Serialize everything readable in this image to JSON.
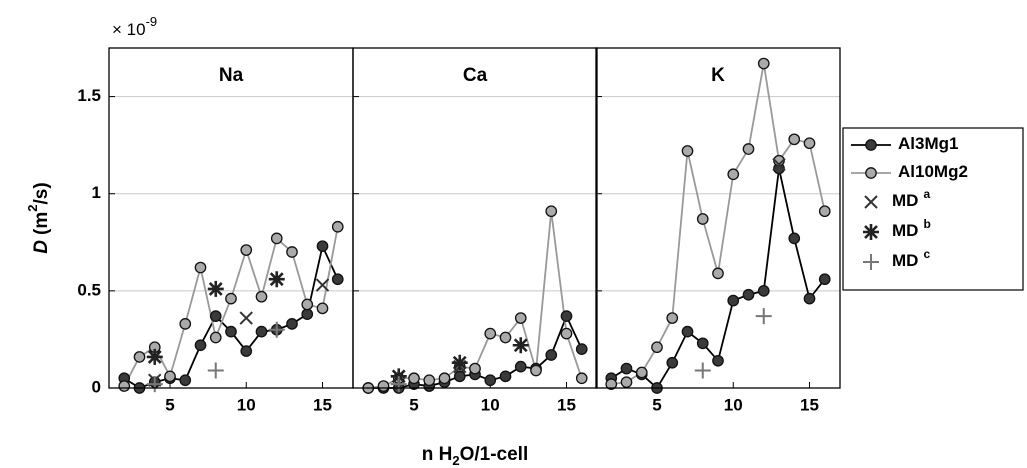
{
  "figure": {
    "multiplier": "× 10",
    "multiplier_sup": "-9",
    "y_label_symbol": "D",
    "y_label_unit": "(m",
    "y_label_unit_sup": "2",
    "y_label_unit_end": "/s)",
    "x_label_start": "n H",
    "x_label_sub": "2",
    "x_label_end": "O/1-cell"
  },
  "chart_data": [
    {
      "type": "line",
      "title": "Na",
      "x": [
        2,
        3,
        4,
        5,
        6,
        7,
        8,
        9,
        10,
        11,
        12,
        13,
        14,
        15,
        16
      ],
      "xlim": [
        1,
        17
      ],
      "xticks": [
        5,
        10,
        15
      ],
      "ylim": [
        0,
        1.75
      ],
      "yticks": [
        0,
        0.5,
        1,
        1.5
      ],
      "grid": true,
      "series": [
        {
          "name": "Al3Mg1",
          "color": "#000000",
          "fill": "#3a3a3a",
          "marker": "circle",
          "values": [
            0.05,
            0.0,
            0.03,
            0.05,
            0.04,
            0.22,
            0.37,
            0.29,
            0.19,
            0.29,
            0.3,
            0.33,
            0.38,
            0.73,
            0.56
          ]
        },
        {
          "name": "Al10Mg2",
          "color": "#999999",
          "fill": "#aaaaaa",
          "marker": "circle",
          "values": [
            0.01,
            0.16,
            0.21,
            0.06,
            0.33,
            0.62,
            0.26,
            0.46,
            0.71,
            0.47,
            0.77,
            0.7,
            0.43,
            0.41,
            0.83
          ]
        },
        {
          "name": "MD",
          "name_sup": "a",
          "color": "#333333",
          "marker": "x",
          "values": [
            null,
            null,
            0.04,
            null,
            null,
            null,
            null,
            null,
            0.36,
            null,
            null,
            null,
            null,
            0.53,
            null
          ]
        },
        {
          "name": "MD",
          "name_sup": "b",
          "color": "#222222",
          "marker": "asterisk",
          "values": [
            null,
            null,
            0.16,
            null,
            null,
            null,
            0.51,
            null,
            null,
            null,
            0.56,
            null,
            null,
            null,
            null
          ]
        },
        {
          "name": "MD",
          "name_sup": "c",
          "color": "#777777",
          "marker": "plus",
          "values": [
            null,
            null,
            0.02,
            null,
            null,
            null,
            0.09,
            null,
            null,
            null,
            0.3,
            null,
            null,
            null,
            null
          ]
        }
      ]
    },
    {
      "type": "line",
      "title": "Ca",
      "x": [
        2,
        3,
        4,
        5,
        6,
        7,
        8,
        9,
        10,
        11,
        12,
        13,
        14,
        15,
        16
      ],
      "xlim": [
        1,
        17
      ],
      "xticks": [
        5,
        10,
        15
      ],
      "ylim": [
        0,
        1.75
      ],
      "yticks": [
        0,
        0.5,
        1,
        1.5
      ],
      "grid": true,
      "series": [
        {
          "color": "#000000",
          "fill": "#3a3a3a",
          "marker": "circle",
          "values": [
            0.0,
            0.0,
            0.0,
            0.02,
            0.01,
            0.03,
            0.06,
            0.07,
            0.04,
            0.06,
            0.11,
            0.1,
            0.17,
            0.37,
            0.2
          ]
        },
        {
          "color": "#999999",
          "fill": "#aaaaaa",
          "marker": "circle",
          "values": [
            0.0,
            0.01,
            0.05,
            0.05,
            0.04,
            0.05,
            0.11,
            0.1,
            0.28,
            0.26,
            0.36,
            0.09,
            0.91,
            0.28,
            0.05
          ]
        },
        {
          "color": "#333333",
          "marker": "x",
          "values": [
            null,
            null,
            null,
            null,
            null,
            null,
            0.11,
            null,
            null,
            null,
            null,
            null,
            null,
            null,
            null
          ]
        },
        {
          "color": "#222222",
          "marker": "asterisk",
          "values": [
            null,
            null,
            0.06,
            null,
            null,
            null,
            0.13,
            null,
            null,
            null,
            0.22,
            null,
            null,
            null,
            null
          ]
        },
        {
          "color": "#777777",
          "marker": "plus",
          "values": [
            null,
            null,
            0.02,
            null,
            null,
            null,
            null,
            null,
            null,
            null,
            null,
            null,
            null,
            null,
            null
          ]
        }
      ]
    },
    {
      "type": "line",
      "title": "K",
      "x": [
        2,
        3,
        4,
        5,
        6,
        7,
        8,
        9,
        10,
        11,
        12,
        13,
        14,
        15,
        16
      ],
      "xlim": [
        1,
        17
      ],
      "xticks": [
        5,
        10,
        15
      ],
      "ylim": [
        0,
        1.75
      ],
      "yticks": [
        0,
        0.5,
        1,
        1.5
      ],
      "grid": true,
      "series": [
        {
          "color": "#000000",
          "fill": "#3a3a3a",
          "marker": "circle",
          "values": [
            0.05,
            0.1,
            0.07,
            0.0,
            0.13,
            0.29,
            0.23,
            0.14,
            0.45,
            0.48,
            0.5,
            1.13,
            0.77,
            0.46,
            0.56
          ]
        },
        {
          "color": "#999999",
          "fill": "#aaaaaa",
          "marker": "circle",
          "values": [
            0.02,
            0.03,
            0.08,
            0.21,
            0.36,
            1.22,
            0.87,
            0.59,
            1.1,
            1.23,
            1.67,
            1.17,
            1.28,
            1.26,
            0.91
          ]
        },
        {
          "color": "#333333",
          "marker": "x",
          "values": [
            null,
            null,
            null,
            null,
            null,
            null,
            null,
            null,
            null,
            null,
            null,
            1.15,
            null,
            null,
            null
          ]
        },
        {
          "color": "#222222",
          "marker": "asterisk",
          "values": [
            null,
            null,
            null,
            null,
            null,
            null,
            null,
            null,
            null,
            null,
            null,
            null,
            null,
            null,
            null
          ]
        },
        {
          "color": "#777777",
          "marker": "plus",
          "values": [
            null,
            null,
            null,
            null,
            null,
            null,
            0.09,
            null,
            null,
            null,
            0.37,
            null,
            null,
            null,
            null
          ]
        }
      ]
    }
  ]
}
